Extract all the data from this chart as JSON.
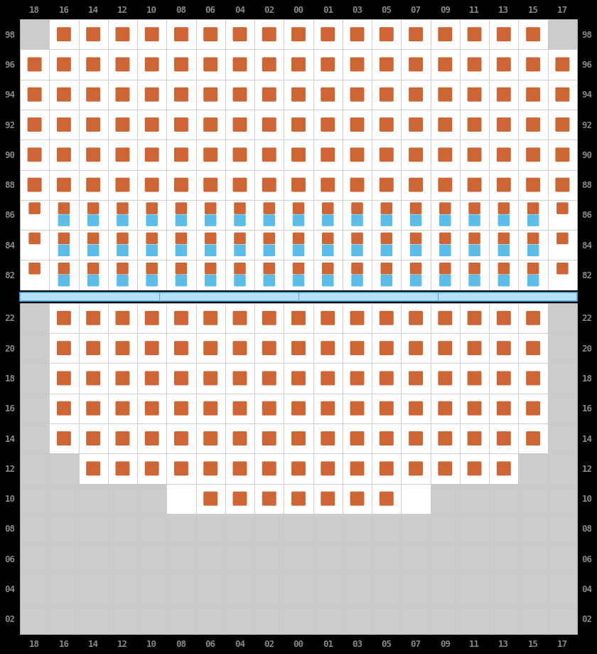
{
  "col_labels": [
    "18",
    "16",
    "14",
    "12",
    "10",
    "08",
    "06",
    "04",
    "02",
    "00",
    "01",
    "03",
    "05",
    "07",
    "09",
    "11",
    "13",
    "15",
    "17"
  ],
  "top_rows": [
    "98",
    "96",
    "94",
    "92",
    "90",
    "88",
    "86",
    "84",
    "82"
  ],
  "bottom_rows": [
    "22",
    "20",
    "18",
    "16",
    "14",
    "12",
    "10",
    "08",
    "06",
    "04",
    "02"
  ],
  "bg_color": "#000000",
  "white": "#ffffff",
  "gray": "#cccccc",
  "orange": "#cd6534",
  "blue": "#5bbde8",
  "label_color": "#888888",
  "grid_color": "#cccccc",
  "sep_fill": "#b8e0f7",
  "sep_border": "#4db0e0",
  "row98_orange_cols": [
    "16",
    "14",
    "12",
    "10",
    "08",
    "06",
    "04",
    "02",
    "00",
    "01",
    "03",
    "05",
    "07",
    "09",
    "11",
    "13",
    "15"
  ],
  "row96_orange_cols": [
    "18",
    "16",
    "14",
    "12",
    "10",
    "08",
    "06",
    "04",
    "02",
    "00",
    "01",
    "03",
    "05",
    "07",
    "09",
    "11",
    "13",
    "15",
    "17"
  ],
  "row94_orange_cols": [
    "18",
    "16",
    "14",
    "12",
    "10",
    "08",
    "06",
    "04",
    "02",
    "00",
    "01",
    "03",
    "05",
    "07",
    "09",
    "11",
    "13",
    "15",
    "17"
  ],
  "row92_orange_cols": [
    "18",
    "16",
    "14",
    "12",
    "10",
    "08",
    "06",
    "04",
    "02",
    "00",
    "01",
    "03",
    "05",
    "07",
    "09",
    "11",
    "13",
    "15",
    "17"
  ],
  "row90_orange_cols": [
    "18",
    "16",
    "14",
    "12",
    "10",
    "08",
    "06",
    "04",
    "02",
    "00",
    "01",
    "03",
    "05",
    "07",
    "09",
    "11",
    "13",
    "15",
    "17"
  ],
  "row88_orange_cols": [
    "18",
    "16",
    "14",
    "12",
    "10",
    "08",
    "06",
    "04",
    "02",
    "00",
    "01",
    "03",
    "05",
    "07",
    "09",
    "11",
    "13",
    "15",
    "17"
  ],
  "row86_orange_cols": [
    "18",
    "16",
    "14",
    "12",
    "10",
    "08",
    "06",
    "04",
    "02",
    "00",
    "01",
    "03",
    "05",
    "07",
    "09",
    "11",
    "13",
    "15",
    "17"
  ],
  "row86_blue_cols": [
    "16",
    "14",
    "12",
    "10",
    "08",
    "06",
    "04",
    "02",
    "00",
    "01",
    "03",
    "05",
    "07",
    "09",
    "11",
    "13",
    "15"
  ],
  "row84_orange_cols": [
    "18",
    "16",
    "14",
    "12",
    "10",
    "08",
    "06",
    "04",
    "02",
    "00",
    "01",
    "03",
    "05",
    "07",
    "09",
    "11",
    "13",
    "15",
    "17"
  ],
  "row84_blue_cols": [
    "16",
    "14",
    "12",
    "10",
    "08",
    "06",
    "04",
    "02",
    "00",
    "01",
    "03",
    "05",
    "07",
    "09",
    "11",
    "13",
    "15"
  ],
  "row82_orange_cols": [
    "18",
    "16",
    "14",
    "12",
    "10",
    "08",
    "06",
    "04",
    "02",
    "00",
    "01",
    "03",
    "05",
    "07",
    "09",
    "11",
    "13",
    "15",
    "17"
  ],
  "row82_blue_cols": [
    "16",
    "14",
    "12",
    "10",
    "08",
    "06",
    "04",
    "02",
    "00",
    "01",
    "03",
    "05",
    "07",
    "09",
    "11",
    "13",
    "15"
  ],
  "bot22_orange_cols": [
    "16",
    "14",
    "12",
    "10",
    "08",
    "06",
    "04",
    "02",
    "00",
    "01",
    "03",
    "05",
    "07",
    "09",
    "11",
    "13",
    "15"
  ],
  "bot20_orange_cols": [
    "16",
    "14",
    "12",
    "10",
    "08",
    "06",
    "04",
    "02",
    "00",
    "01",
    "03",
    "05",
    "07",
    "09",
    "11",
    "13",
    "15"
  ],
  "bot18_orange_cols": [
    "16",
    "14",
    "12",
    "10",
    "08",
    "06",
    "04",
    "02",
    "00",
    "01",
    "03",
    "05",
    "07",
    "09",
    "11",
    "13",
    "15"
  ],
  "bot16_orange_cols": [
    "16",
    "14",
    "12",
    "10",
    "08",
    "06",
    "04",
    "02",
    "00",
    "01",
    "03",
    "05",
    "07",
    "09",
    "11",
    "13",
    "15"
  ],
  "bot14_orange_cols": [
    "16",
    "14",
    "12",
    "10",
    "08",
    "06",
    "04",
    "02",
    "00",
    "01",
    "03",
    "05",
    "07",
    "09",
    "11",
    "13",
    "15"
  ],
  "bot12_orange_cols": [
    "14",
    "12",
    "10",
    "08",
    "06",
    "04",
    "02",
    "00",
    "01",
    "03",
    "05",
    "07",
    "09",
    "11",
    "13"
  ],
  "bot10_orange_cols": [
    "06",
    "04",
    "02",
    "00",
    "01",
    "03",
    "05"
  ],
  "bot12_white_cols": [
    "14",
    "12",
    "10",
    "08",
    "06",
    "04",
    "02",
    "00",
    "01",
    "03",
    "05",
    "07",
    "09",
    "11",
    "13"
  ],
  "bot10_white_cols": [
    "08",
    "06",
    "04",
    "02",
    "00",
    "01",
    "03",
    "05",
    "07"
  ]
}
